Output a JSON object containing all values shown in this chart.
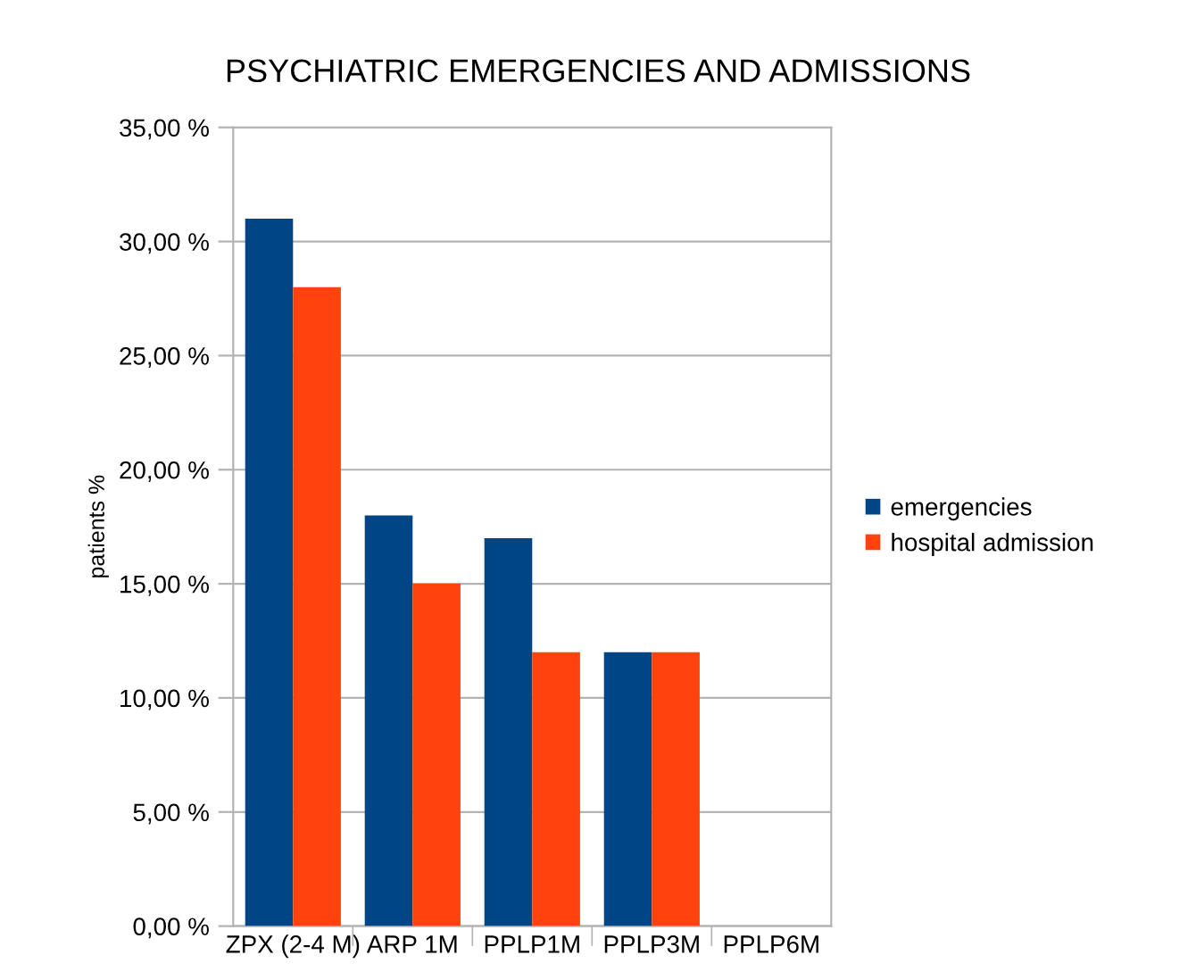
{
  "chart_data": {
    "type": "bar",
    "title": "PSYCHIATRIC EMERGENCIES AND ADMISSIONS",
    "ylabel": "patients %",
    "categories": [
      "ZPX (2-4 M)",
      "ARP 1M",
      "PPLP1M",
      "PPLP3M",
      "PPLP6M"
    ],
    "series": [
      {
        "name": "emergencies",
        "color": "#004586",
        "values": [
          31,
          18,
          17,
          12,
          0
        ]
      },
      {
        "name": "hospital admission",
        "color": "#ff420e",
        "values": [
          28,
          15,
          12,
          12,
          0
        ]
      }
    ],
    "ylim": [
      0,
      35
    ],
    "yticks": [
      {
        "value": 0,
        "label": "0,00 %"
      },
      {
        "value": 5,
        "label": "5,00 %"
      },
      {
        "value": 10,
        "label": "10,00 %"
      },
      {
        "value": 15,
        "label": "15,00 %"
      },
      {
        "value": 20,
        "label": "20,00 %"
      },
      {
        "value": 25,
        "label": "25,00 %"
      },
      {
        "value": 30,
        "label": "30,00 %"
      },
      {
        "value": 35,
        "label": "35,00 %"
      }
    ],
    "grid": "y",
    "legend": "right"
  }
}
